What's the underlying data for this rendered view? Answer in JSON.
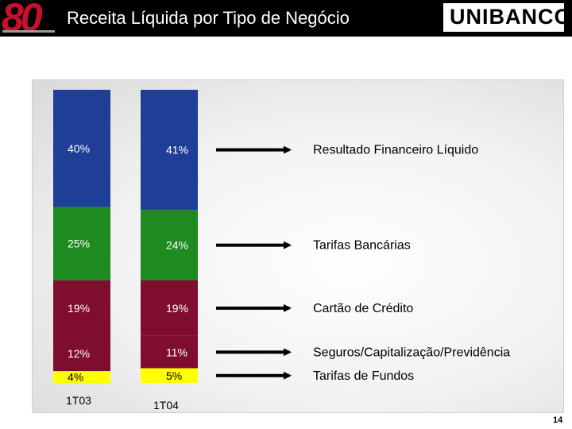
{
  "header": {
    "logo_text": "80",
    "title": "Receita Líquida por Tipo de Negócio",
    "brand": "UNIBANCO"
  },
  "page_number": "14",
  "colors": {
    "header_bg": "#000000",
    "logo": "#c8102e",
    "segment_colors": [
      "#1f3f97",
      "#1f8a1f",
      "#7f0e2e",
      "#7f0e2e",
      "#ffff00"
    ]
  },
  "chart_data": {
    "type": "bar",
    "stacked": true,
    "percent": true,
    "categories": [
      "1T03",
      "1T04"
    ],
    "series": [
      {
        "name": "Resultado Financeiro Líquido",
        "values": [
          40,
          41
        ],
        "labels": [
          "40%",
          "41%"
        ]
      },
      {
        "name": "Tarifas Bancárias",
        "values": [
          25,
          24
        ],
        "labels": [
          "25%",
          "24%"
        ]
      },
      {
        "name": "Cartão de Crédito",
        "values": [
          19,
          19
        ],
        "labels": [
          "19%",
          "19%"
        ]
      },
      {
        "name": "Seguros/Capitalização/Previdência",
        "values": [
          12,
          11
        ],
        "labels": [
          "12%",
          "11%"
        ]
      },
      {
        "name": "Tarifas de Fundos",
        "values": [
          4,
          5
        ],
        "labels": [
          "4%",
          "5%"
        ]
      }
    ],
    "legend": "right, with arrows"
  }
}
